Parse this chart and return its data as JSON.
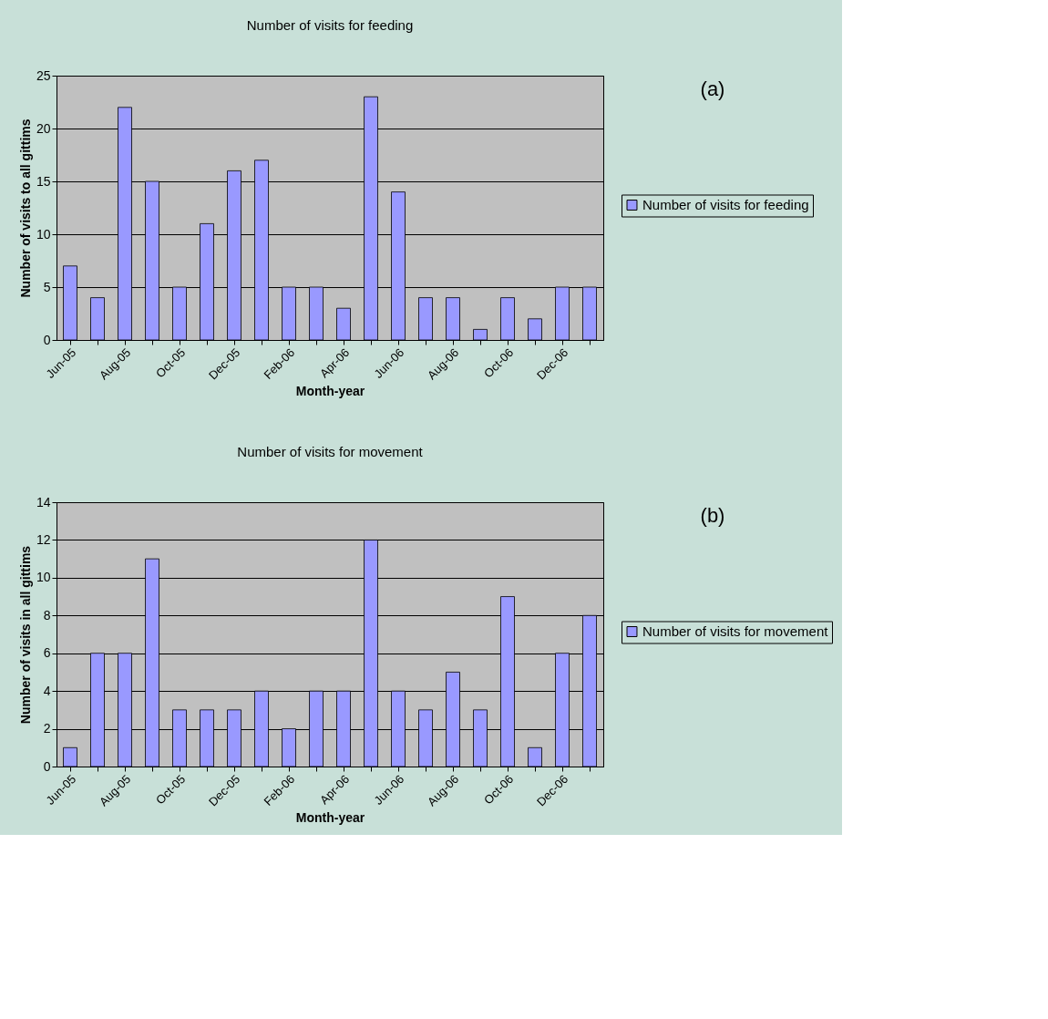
{
  "chart_data": [
    {
      "type": "bar",
      "title": "Number of visits for feeding",
      "xlabel": "Month-year",
      "ylabel": "Number of visits to all gittims",
      "categories": [
        "Jun-05",
        null,
        "Aug-05",
        null,
        "Oct-05",
        null,
        "Dec-05",
        null,
        "Feb-06",
        null,
        "Apr-06",
        null,
        "Jun-06",
        null,
        "Aug-06",
        null,
        "Oct-06",
        null,
        "Dec-06",
        null
      ],
      "series": [
        {
          "name": "Number of visits for feeding",
          "color": "#9999ff",
          "values": [
            7,
            4,
            22,
            15,
            5,
            11,
            16,
            17,
            5,
            5,
            3,
            23,
            14,
            4,
            4,
            1,
            4,
            2,
            5,
            5
          ]
        }
      ],
      "ylim": [
        0,
        25
      ],
      "yticks": [
        0,
        5,
        10,
        15,
        20,
        25
      ],
      "grid": "y",
      "legend": "right",
      "annotations": [
        "(a)"
      ]
    },
    {
      "type": "bar",
      "title": "Number of visits for movement",
      "xlabel": "Month-year",
      "ylabel": "Number of visits in all gittims",
      "categories": [
        "Jun-05",
        null,
        "Aug-05",
        null,
        "Oct-05",
        null,
        "Dec-05",
        null,
        "Feb-06",
        null,
        "Apr-06",
        null,
        "Jun-06",
        null,
        "Aug-06",
        null,
        "Oct-06",
        null,
        "Dec-06",
        null
      ],
      "series": [
        {
          "name": "Number of visits for movement",
          "color": "#9999ff",
          "values": [
            1,
            6,
            6,
            11,
            3,
            3,
            3,
            4,
            2,
            4,
            4,
            12,
            4,
            3,
            5,
            3,
            9,
            1,
            6,
            8
          ]
        }
      ],
      "ylim": [
        0,
        14
      ],
      "yticks": [
        0,
        2,
        4,
        6,
        8,
        10,
        12,
        14
      ],
      "grid": "y",
      "legend": "right",
      "annotations": [
        "(b)"
      ]
    }
  ]
}
